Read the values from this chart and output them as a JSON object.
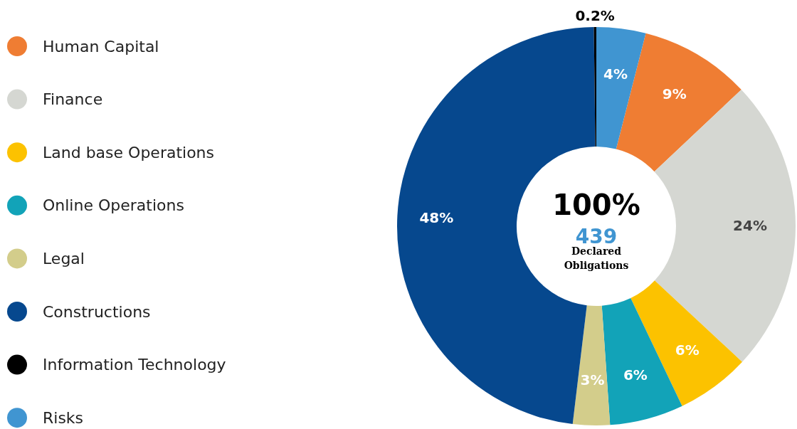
{
  "chart_data": {
    "type": "donut",
    "categories": [
      "Human Capital",
      "Finance",
      "Land base Operations",
      "Online Operations",
      "Legal",
      "Constructions",
      "Information Technology",
      "Risks"
    ],
    "values": [
      9,
      24,
      6,
      6,
      3,
      48,
      0.2,
      4
    ],
    "colors": [
      "#ef7d33",
      "#d5d7d2",
      "#fcc200",
      "#12a3b8",
      "#d3cd8b",
      "#06488e",
      "#000000",
      "#4095d1"
    ],
    "value_labels": [
      "9%",
      "24%",
      "6%",
      "6%",
      "3%",
      "48%",
      "0.2%",
      "4%"
    ],
    "annotations": [
      "100%",
      "439",
      "Declared Obligations"
    ],
    "legend": "left"
  }
}
